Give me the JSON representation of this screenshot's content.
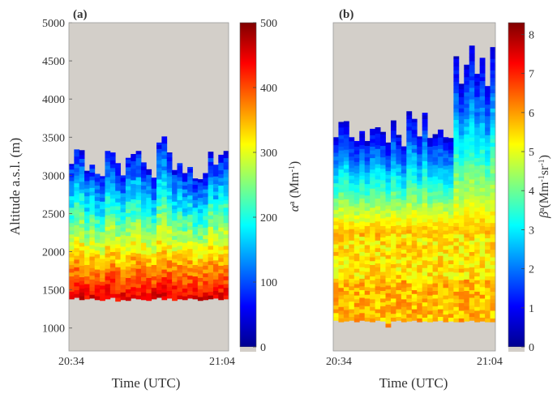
{
  "figure": {
    "panel_a_label": "(a)",
    "panel_b_label": "(b)",
    "ylabel": "Altitude a.s.l. (m)",
    "xlabel": "Time (UTC)"
  },
  "chart_data": [
    {
      "type": "heatmap",
      "panel": "(a)",
      "xlabel": "Time (UTC)",
      "ylabel": "Altitude a.s.l. (m)",
      "x_ticks": [
        "20:34",
        "21:04"
      ],
      "y_ticks": [
        1000,
        1500,
        2000,
        2500,
        3000,
        3500,
        4000,
        4500,
        5000
      ],
      "ylim": [
        700,
        5000
      ],
      "n_profiles": 31,
      "bottom_m": [
        1380,
        1400,
        1370,
        1380,
        1390,
        1370,
        1360,
        1380,
        1400,
        1350,
        1370,
        1360,
        1390,
        1380,
        1370,
        1360,
        1380,
        1400,
        1370,
        1390,
        1360,
        1380,
        1370,
        1390,
        1380,
        1360,
        1370,
        1380,
        1390,
        1370,
        1380
      ],
      "top_m": [
        3150,
        3340,
        3330,
        3060,
        3140,
        3020,
        2990,
        3320,
        3300,
        3160,
        3000,
        3230,
        3280,
        3320,
        3170,
        3080,
        2970,
        3430,
        3510,
        3300,
        3070,
        3160,
        3030,
        3110,
        2960,
        2950,
        3030,
        3310,
        3140,
        3270,
        3320
      ],
      "colorbar": {
        "label": "α^a (Mm^-1)",
        "min": 0,
        "max": 500,
        "ticks": [
          0,
          100,
          200,
          300,
          400,
          500
        ]
      },
      "colors": {
        "background": "#d3cfc9"
      }
    },
    {
      "type": "heatmap",
      "panel": "(b)",
      "xlabel": "Time (UTC)",
      "x_ticks": [
        "20:34",
        "21:04"
      ],
      "ylim": [
        700,
        5000
      ],
      "n_profiles": 31,
      "bottom_m": [
        1100,
        1080,
        1090,
        1100,
        1080,
        1100,
        1090,
        1080,
        1100,
        1090,
        1010,
        1090,
        1100,
        1080,
        1090,
        1100,
        1080,
        1090,
        1080,
        1090,
        1100,
        1080,
        1090,
        1080,
        1080,
        1090,
        1100,
        1080,
        1090,
        1080,
        1080
      ],
      "top_m": [
        3500,
        3700,
        3710,
        3500,
        3450,
        3580,
        3450,
        3610,
        3630,
        3570,
        3430,
        3720,
        3530,
        3380,
        3840,
        3740,
        3510,
        3820,
        3490,
        3540,
        3600,
        3500,
        3490,
        4560,
        4200,
        4450,
        4700,
        4330,
        4540,
        4170,
        4680
      ],
      "colorbar": {
        "label": "β^a (Mm^-1 sr^-1)",
        "min": 0,
        "max": 8.3,
        "ticks": [
          0,
          1,
          2,
          3,
          4,
          5,
          6,
          7,
          8
        ]
      },
      "colors": {
        "background": "#d3cfc9"
      }
    }
  ]
}
